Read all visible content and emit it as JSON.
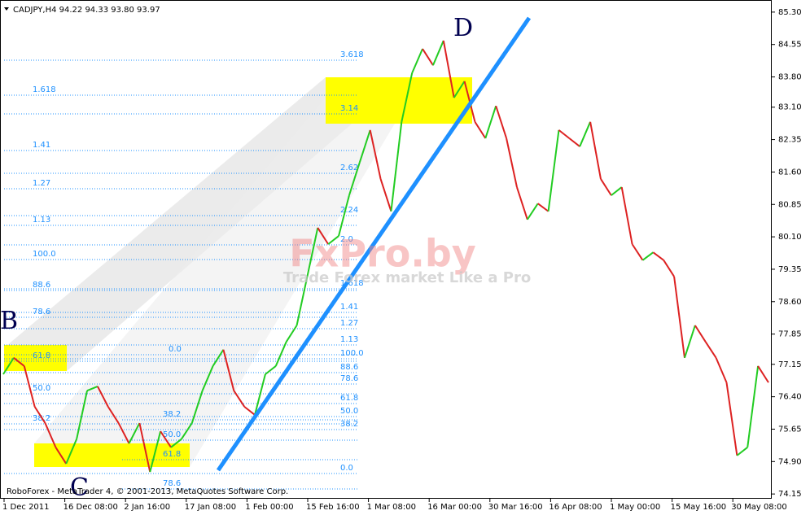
{
  "chart_data": {
    "type": "line",
    "header": "CADJPY,H4  94.22 94.33 93.80 93.97",
    "up_color": "#22cc22",
    "down_color": "#dd2222",
    "values": [
      76.92,
      77.3,
      77.11,
      76.17,
      75.79,
      75.23,
      74.85,
      75.42,
      76.54,
      76.64,
      76.17,
      75.79,
      75.32,
      75.79,
      74.66,
      75.6,
      75.23,
      75.42,
      75.79,
      76.54,
      77.11,
      77.49,
      76.54,
      76.17,
      75.98,
      76.92,
      77.11,
      77.67,
      78.05,
      79.18,
      80.31,
      79.93,
      80.12,
      81.06,
      81.82,
      82.57,
      81.44,
      80.69,
      82.76,
      83.89,
      84.45,
      84.07,
      84.64,
      83.32,
      83.7,
      82.76,
      82.38,
      83.13,
      82.38,
      81.25,
      80.5,
      80.87,
      80.69,
      82.57,
      82.38,
      82.19,
      82.76,
      81.44,
      81.06,
      81.25,
      79.93,
      79.56,
      79.74,
      79.56,
      79.18,
      77.3,
      78.05,
      77.67,
      77.3,
      76.73,
      75.04,
      75.23,
      77.11,
      76.73
    ],
    "ylim": [
      74.04,
      85.58
    ],
    "yticks": [
      {
        "value": 85.3,
        "label": "85.30"
      },
      84.55,
      {
        "value": 83.8,
        "label": "83.80"
      },
      {
        "value": 83.1,
        "label": "83.10"
      },
      82.35,
      {
        "value": 81.6,
        "label": "81.60"
      },
      80.85,
      {
        "value": 80.1,
        "label": "80.10"
      },
      79.35,
      {
        "value": 78.6,
        "label": "78.60"
      },
      77.85,
      77.15,
      {
        "value": 76.4,
        "label": "76.40"
      },
      75.65,
      {
        "value": 74.9,
        "label": "74.90"
      },
      74.15
    ],
    "xlabels": [
      "1 Dec 2011",
      "16 Dec 08:00",
      "2 Jan 16:00",
      "17 Jan 08:00",
      "1 Feb 00:00",
      "15 Feb 16:00",
      "1 Mar 08:00",
      "16 Mar 00:00",
      "30 Mar 16:00",
      "16 Apr 08:00",
      "1 May 00:00",
      "15 May 16:00",
      "30 May 08:00"
    ],
    "fib_left": [
      "1.618",
      "1.41",
      "1.27",
      "1.13",
      "100.0",
      "88.6",
      "78.6",
      "61.8",
      "50.0",
      "38.2"
    ],
    "fib_mid": [
      "38.2",
      "50.0",
      "61.8",
      "78.6"
    ],
    "fib_right": [
      "3.618",
      "3.14",
      "2.62",
      "2.24",
      "2.0",
      "1.618",
      "1.41",
      "1.27",
      "1.13",
      "0.0",
      "100.0",
      "88.6",
      "78.6",
      "61.8",
      "50.0",
      "38.2",
      "0.0"
    ],
    "points": [
      "B",
      "C",
      "D"
    ],
    "watermark": "FxPro.by",
    "watermark_sub": "Trade Forex market Like a Pro",
    "footer": "RoboForex - MetaTrader 4, © 2001-2013, MetaQuotes Software Corp."
  }
}
